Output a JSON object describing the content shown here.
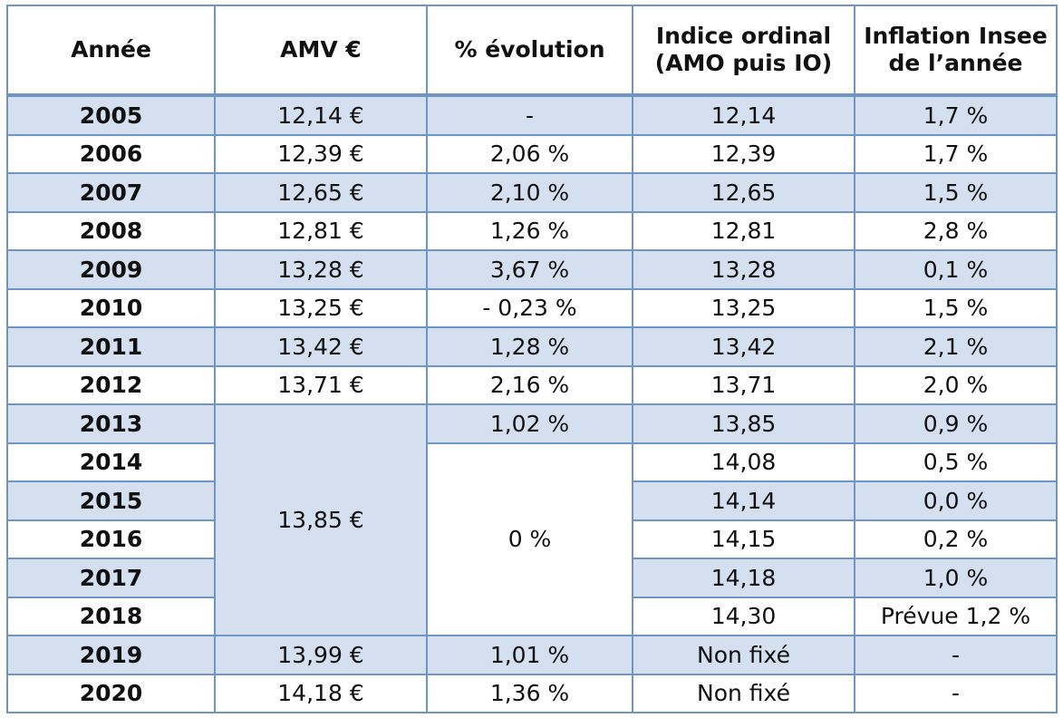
{
  "headers": [
    "Année",
    "AMV €",
    "% évolution",
    "Indice ordinal (AMO puis IO)",
    "Inflation Insee de l’année"
  ],
  "rows": [
    {
      "year": "2005",
      "amv": "12,14 €",
      "evolution": "-",
      "indice": "12,14",
      "inflation": "1,7 %"
    },
    {
      "year": "2006",
      "amv": "12,39 €",
      "evolution": "2,06 %",
      "indice": "12,39",
      "inflation": "1,7 %"
    },
    {
      "year": "2007",
      "amv": "12,65 €",
      "evolution": "2,10 %",
      "indice": "12,65",
      "inflation": "1,5 %"
    },
    {
      "year": "2008",
      "amv": "12,81 €",
      "evolution": "1,26 %",
      "indice": "12,81",
      "inflation": "2,8 %"
    },
    {
      "year": "2009",
      "amv": "13,28 €",
      "evolution": "3,67 %",
      "indice": "13,28",
      "inflation": "0,1 %"
    },
    {
      "year": "2010",
      "amv": "13,25 €",
      "evolution": "- 0,23 %",
      "indice": "13,25",
      "inflation": "1,5 %"
    },
    {
      "year": "2011",
      "amv": "13,42 €",
      "evolution": "1,28 %",
      "indice": "13,42",
      "inflation": "2,1 %"
    },
    {
      "year": "2012",
      "amv": "13,71 €",
      "evolution": "2,16 %",
      "indice": "13,71",
      "inflation": "2,0 %"
    },
    {
      "year": "2013",
      "amv": "13,85 €",
      "evolution": "1,02 %",
      "indice": "13,85",
      "inflation": "0,9 %"
    },
    {
      "year": "2014",
      "evolution": "0 %",
      "indice": "14,08",
      "inflation": "0,5 %"
    },
    {
      "year": "2015",
      "indice": "14,14",
      "inflation": "0,0 %"
    },
    {
      "year": "2016",
      "indice": "14,15",
      "inflation": "0,2 %"
    },
    {
      "year": "2017",
      "indice": "14,18",
      "inflation": "1,0 %"
    },
    {
      "year": "2018",
      "indice": "14,30",
      "inflation": "Prévue 1,2 %"
    },
    {
      "year": "2019",
      "amv": "13,99 €",
      "evolution": "1,01 %",
      "indice": "Non fixé",
      "inflation": "-"
    },
    {
      "year": "2020",
      "amv": "14,18 €",
      "evolution": "1,36 %",
      "indice": "Non fixé",
      "inflation": "-"
    }
  ],
  "colors": {
    "border": "#6f94c6",
    "row_shade": "#d4dff0"
  }
}
